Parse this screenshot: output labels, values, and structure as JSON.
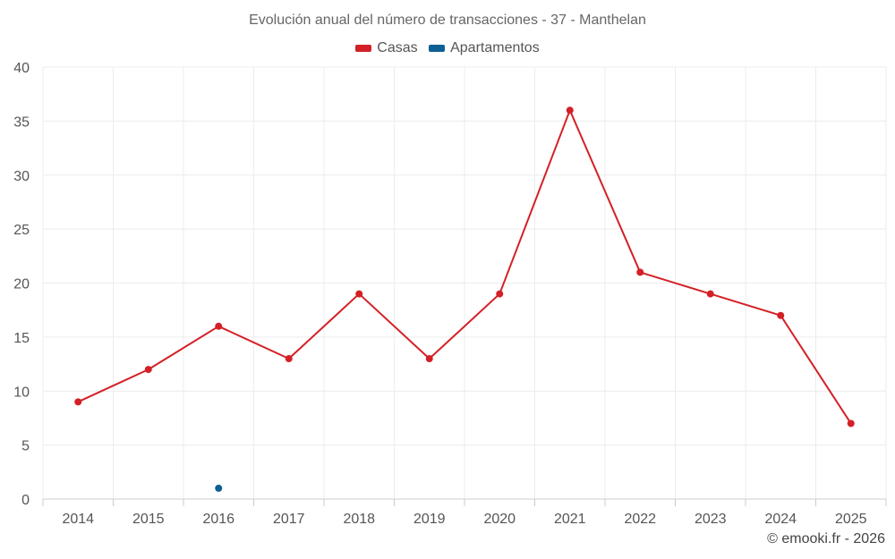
{
  "chart_data": {
    "type": "line",
    "title": "Evolución anual del número de transacciones - 37 - Manthelan",
    "categories": [
      "2014",
      "2015",
      "2016",
      "2017",
      "2018",
      "2019",
      "2020",
      "2021",
      "2022",
      "2023",
      "2024",
      "2025"
    ],
    "series": [
      {
        "name": "Casas",
        "color": "#d32026",
        "values": [
          9,
          12,
          16,
          13,
          19,
          13,
          19,
          36,
          21,
          19,
          17,
          7
        ]
      },
      {
        "name": "Apartamentos",
        "color": "#0d5f94",
        "values": [
          null,
          null,
          1,
          null,
          null,
          null,
          null,
          null,
          null,
          null,
          null,
          null
        ]
      }
    ],
    "ylim": [
      0,
      40
    ],
    "yticks": [
      "0",
      "5",
      "10",
      "15",
      "20",
      "25",
      "30",
      "35",
      "40"
    ],
    "xlabel": "",
    "ylabel": "",
    "grid": true,
    "legend_position": "top-center"
  },
  "credit": "© emooki.fr - 2026"
}
